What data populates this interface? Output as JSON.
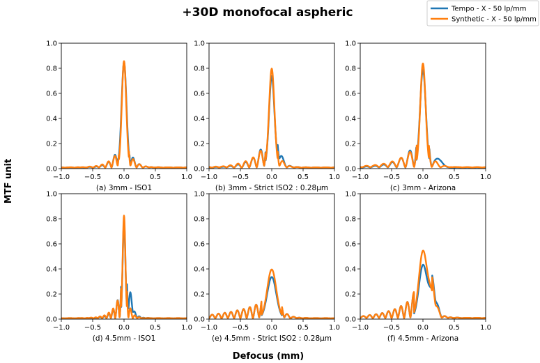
{
  "chart_data": {
    "type": "line",
    "title": "+30D monofocal aspheric",
    "xlabel": "Defocus (mm)",
    "ylabel": "MTF unit",
    "xlim": [
      -1.0,
      1.0
    ],
    "ylim": [
      0.0,
      1.0
    ],
    "xticks": [
      "−1.0",
      "−0.5",
      "0.0",
      "0.5",
      "1.0"
    ],
    "yticks": [
      "0.0",
      "0.2",
      "0.4",
      "0.6",
      "0.8",
      "1.0"
    ],
    "grid": false,
    "legend_position": "top-right",
    "series_names": [
      "Tempo - X - 50 lp/mm",
      "Synthetic - X - 50 lp/mm"
    ],
    "series_colors": [
      "#1f77b4",
      "#ff7f0e"
    ],
    "panels": [
      {
        "caption": "(a) 3mm - ISO1",
        "series": [
          {
            "name": "Tempo - X - 50 lp/mm",
            "peak": 0.84,
            "pk_center": 0.0,
            "pk_width": 0.055,
            "side_amp": 0.22,
            "side_fall_neg": 0.12,
            "side_fall_pos": 0.09,
            "side_period": 0.1,
            "shoulder": 0.0,
            "sh_center": 0.0,
            "sh_width": 0.05,
            "tail": 0.01
          },
          {
            "name": "Synthetic - X - 50 lp/mm",
            "peak": 0.85,
            "pk_center": 0.0,
            "pk_width": 0.05,
            "side_amp": 0.18,
            "side_fall_neg": 0.15,
            "side_fall_pos": 0.1,
            "side_period": 0.1,
            "shoulder": 0.0,
            "sh_center": 0.0,
            "sh_width": 0.05,
            "tail": 0.01
          }
        ]
      },
      {
        "caption": "(b) 3mm - Strict ISO2 : 0.28μm",
        "series": [
          {
            "name": "Tempo - X - 50 lp/mm",
            "peak": 0.73,
            "pk_center": 0.0,
            "pk_width": 0.06,
            "side_amp": 0.26,
            "side_fall_neg": 0.2,
            "side_fall_pos": 0.08,
            "side_period": 0.12,
            "shoulder": 0.06,
            "sh_center": 0.12,
            "sh_width": 0.05,
            "tail": 0.01
          },
          {
            "name": "Synthetic - X - 50 lp/mm",
            "peak": 0.79,
            "pk_center": 0.0,
            "pk_width": 0.06,
            "side_amp": 0.22,
            "side_fall_neg": 0.24,
            "side_fall_pos": 0.08,
            "side_period": 0.12,
            "shoulder": 0.0,
            "sh_center": 0.0,
            "sh_width": 0.05,
            "tail": 0.01
          }
        ]
      },
      {
        "caption": "(c) 3mm - Arizona",
        "series": [
          {
            "name": "Tempo - X - 50 lp/mm",
            "peak": 0.78,
            "pk_center": 0.0,
            "pk_width": 0.065,
            "side_amp": 0.24,
            "side_fall_neg": 0.25,
            "side_fall_pos": 0.07,
            "side_period": 0.14,
            "shoulder": 0.06,
            "sh_center": 0.26,
            "sh_width": 0.07,
            "tail": 0.01
          },
          {
            "name": "Synthetic - X - 50 lp/mm",
            "peak": 0.83,
            "pk_center": 0.0,
            "pk_width": 0.06,
            "side_amp": 0.2,
            "side_fall_neg": 0.3,
            "side_fall_pos": 0.1,
            "side_period": 0.14,
            "shoulder": 0.0,
            "sh_center": 0.0,
            "sh_width": 0.05,
            "tail": 0.012
          }
        ]
      },
      {
        "caption": "(d) 4.5mm - ISO1",
        "series": [
          {
            "name": "Tempo - X - 50 lp/mm",
            "peak": 0.77,
            "pk_center": 0.0,
            "pk_width": 0.03,
            "side_amp": 0.3,
            "side_fall_neg": 0.1,
            "side_fall_pos": 0.07,
            "side_period": 0.07,
            "shoulder": 0.1,
            "sh_center": 0.1,
            "sh_width": 0.05,
            "tail": 0.008
          },
          {
            "name": "Synthetic - X - 50 lp/mm",
            "peak": 0.82,
            "pk_center": 0.0,
            "pk_width": 0.03,
            "side_amp": 0.26,
            "side_fall_neg": 0.12,
            "side_fall_pos": 0.06,
            "side_period": 0.07,
            "shoulder": 0.0,
            "sh_center": 0.0,
            "sh_width": 0.05,
            "tail": 0.008
          }
        ]
      },
      {
        "caption": "(e) 4.5mm - Strict ISO2 : 0.28μm",
        "series": [
          {
            "name": "Tempo - X - 50 lp/mm",
            "peak": 0.33,
            "pk_center": 0.0,
            "pk_width": 0.1,
            "side_amp": 0.14,
            "side_fall_neg": 0.55,
            "side_fall_pos": 0.1,
            "side_period": 0.1,
            "shoulder": 0.0,
            "sh_center": 0.0,
            "sh_width": 0.05,
            "tail": 0.008
          },
          {
            "name": "Synthetic - X - 50 lp/mm",
            "peak": 0.39,
            "pk_center": 0.0,
            "pk_width": 0.1,
            "side_amp": 0.14,
            "side_fall_neg": 0.55,
            "side_fall_pos": 0.1,
            "side_period": 0.1,
            "shoulder": 0.0,
            "sh_center": 0.0,
            "sh_width": 0.05,
            "tail": 0.008
          }
        ]
      },
      {
        "caption": "(f) 4.5mm - Arizona",
        "series": [
          {
            "name": "Tempo - X - 50 lp/mm",
            "peak": 0.42,
            "pk_center": 0.0,
            "pk_width": 0.09,
            "side_amp": 0.2,
            "side_fall_neg": 0.35,
            "side_fall_pos": 0.1,
            "side_period": 0.1,
            "shoulder": 0.2,
            "sh_center": 0.15,
            "sh_width": 0.08,
            "tail": 0.01
          },
          {
            "name": "Synthetic - X - 50 lp/mm",
            "peak": 0.53,
            "pk_center": 0.0,
            "pk_width": 0.09,
            "side_amp": 0.2,
            "side_fall_neg": 0.35,
            "side_fall_pos": 0.1,
            "side_period": 0.1,
            "shoulder": 0.18,
            "sh_center": 0.14,
            "sh_width": 0.08,
            "tail": 0.01
          }
        ]
      }
    ]
  }
}
